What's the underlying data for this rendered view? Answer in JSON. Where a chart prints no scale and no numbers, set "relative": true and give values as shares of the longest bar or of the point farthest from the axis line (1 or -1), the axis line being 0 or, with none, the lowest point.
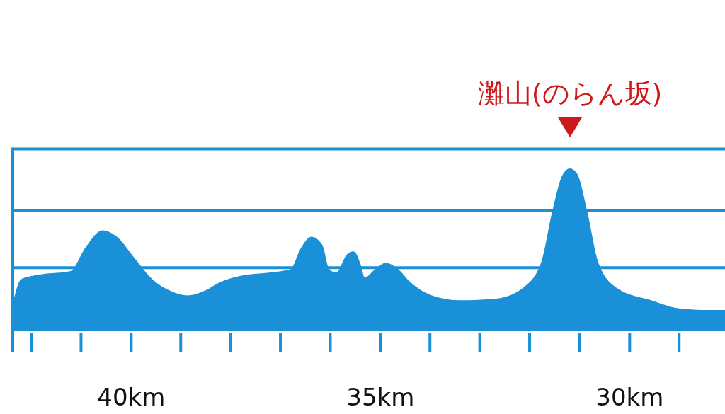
{
  "chart_data": {
    "type": "area",
    "relative": true,
    "color": "#1a90d9",
    "x": [
      42.37,
      42.2,
      41.78,
      41.21,
      40.92,
      40.57,
      40.28,
      39.93,
      39.57,
      39.22,
      38.86,
      38.51,
      38.22,
      37.8,
      37.23,
      36.8,
      36.59,
      36.38,
      36.16,
      36.02,
      35.88,
      35.67,
      35.53,
      35.38,
      35.31,
      35.1,
      34.89,
      34.67,
      34.39,
      33.96,
      33.39,
      32.68,
      32.12,
      31.76,
      31.55,
      31.34,
      31.19,
      31.05,
      30.84,
      30.63,
      30.27,
      29.56,
      29.0,
      28.42,
      28.08
    ],
    "values": [
      0.17,
      0.32,
      0.35,
      0.37,
      0.51,
      0.62,
      0.58,
      0.45,
      0.32,
      0.25,
      0.22,
      0.25,
      0.3,
      0.34,
      0.36,
      0.38,
      0.51,
      0.58,
      0.53,
      0.38,
      0.36,
      0.47,
      0.49,
      0.4,
      0.33,
      0.38,
      0.42,
      0.39,
      0.3,
      0.22,
      0.19,
      0.2,
      0.27,
      0.43,
      0.73,
      0.96,
      1,
      0.97,
      0.73,
      0.43,
      0.27,
      0.19,
      0.14,
      0.13,
      0.13
    ],
    "xlim": [
      42.37,
      28.08
    ],
    "xticks": [
      {
        "value": 40,
        "label": "40km"
      },
      {
        "value": 35,
        "label": "35km"
      },
      {
        "value": 30,
        "label": "30km"
      }
    ],
    "ref_lines": [
      {
        "axis": "y",
        "value": 0.39,
        "color": "#1a90d9"
      },
      {
        "axis": "y",
        "value": 0.74,
        "color": "#1a90d9"
      },
      {
        "axis": "y",
        "value": 1.12,
        "color": "#1a90d9"
      }
    ],
    "annotations": [
      "灘山(のらん坂)"
    ]
  }
}
